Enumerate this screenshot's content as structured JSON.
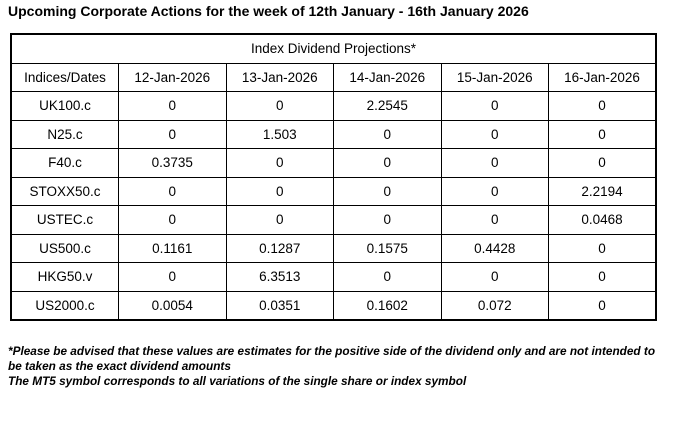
{
  "page_title": "Upcoming Corporate Actions for the week of 12th January - 16th January 2026",
  "table": {
    "title": "Index Dividend Projections*",
    "corner_header": "Indices/Dates",
    "date_headers": [
      "12-Jan-2026",
      "13-Jan-2026",
      "14-Jan-2026",
      "15-Jan-2026",
      "16-Jan-2026"
    ],
    "rows": [
      {
        "index": "UK100.c",
        "values": [
          "0",
          "0",
          "2.2545",
          "0",
          "0"
        ]
      },
      {
        "index": "N25.c",
        "values": [
          "0",
          "1.503",
          "0",
          "0",
          "0"
        ]
      },
      {
        "index": "F40.c",
        "values": [
          "0.3735",
          "0",
          "0",
          "0",
          "0"
        ]
      },
      {
        "index": "STOXX50.c",
        "values": [
          "0",
          "0",
          "0",
          "0",
          "2.2194"
        ]
      },
      {
        "index": "USTEC.c",
        "values": [
          "0",
          "0",
          "0",
          "0",
          "0.0468"
        ]
      },
      {
        "index": "US500.c",
        "values": [
          "0.1161",
          "0.1287",
          "0.1575",
          "0.4428",
          "0"
        ]
      },
      {
        "index": "HKG50.v",
        "values": [
          "0",
          "6.3513",
          "0",
          "0",
          "0"
        ]
      },
      {
        "index": "US2000.c",
        "values": [
          "0.0054",
          "0.0351",
          "0.1602",
          "0.072",
          "0"
        ]
      }
    ]
  },
  "footnotes": [
    "*Please be advised that these values are estimates for the positive side of the dividend only and are not intended to be taken as the exact dividend amounts",
    "The MT5 symbol corresponds to all variations of the single share or index symbol"
  ],
  "colors": {
    "text": "#000000",
    "border": "#000000",
    "background": "#ffffff"
  }
}
